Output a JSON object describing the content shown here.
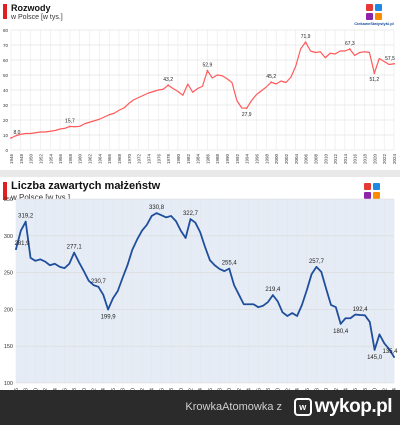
{
  "chart_data": [
    {
      "type": "line",
      "title": "Rozwody",
      "subtitle": "w Polsce [w tys.]",
      "x": [
        1946,
        1947,
        1948,
        1949,
        1950,
        1951,
        1952,
        1953,
        1954,
        1955,
        1956,
        1957,
        1958,
        1959,
        1960,
        1961,
        1962,
        1963,
        1964,
        1965,
        1966,
        1967,
        1968,
        1969,
        1970,
        1971,
        1972,
        1973,
        1974,
        1975,
        1976,
        1977,
        1978,
        1979,
        1980,
        1981,
        1982,
        1983,
        1984,
        1985,
        1986,
        1987,
        1988,
        1989,
        1990,
        1991,
        1992,
        1993,
        1994,
        1995,
        1996,
        1997,
        1998,
        1999,
        2000,
        2001,
        2002,
        2003,
        2004,
        2005,
        2006,
        2007,
        2008,
        2009,
        2010,
        2011,
        2012,
        2013,
        2014,
        2015,
        2016,
        2017,
        2018,
        2019,
        2020,
        2021,
        2022,
        2023,
        2024
      ],
      "values": [
        8.0,
        9.5,
        10.5,
        11.0,
        11.0,
        11.5,
        12.0,
        12.0,
        12.5,
        13.0,
        14.0,
        14.5,
        15.7,
        15.5,
        15.8,
        17.5,
        18.5,
        19.5,
        20.5,
        22.0,
        23.5,
        24.5,
        26.5,
        28.0,
        31.0,
        33.5,
        35.0,
        36.5,
        38.0,
        39.0,
        40.0,
        40.5,
        43.2,
        41.0,
        39.0,
        36.5,
        44.0,
        38.5,
        41.0,
        42.5,
        52.9,
        48.0,
        50.0,
        49.5,
        47.5,
        45.0,
        33.0,
        28.0,
        27.9,
        33.0,
        37.0,
        39.5,
        42.0,
        45.2,
        44.0,
        46.0,
        45.0,
        48.5,
        56.0,
        67.5,
        71.9,
        66.0,
        65.0,
        65.5,
        61.5,
        64.5,
        64.0,
        66.0,
        66.0,
        67.3,
        63.0,
        65.0,
        65.5,
        65.0,
        51.2,
        61.0,
        59.0,
        57.0,
        57.5
      ],
      "x_ticks": [
        "1946",
        "1948",
        "1950",
        "1952",
        "1954",
        "1956",
        "1958",
        "1960",
        "1962",
        "1964",
        "1966",
        "1968",
        "1970",
        "1972",
        "1974",
        "1976",
        "1978",
        "1980",
        "1982",
        "1984",
        "1986",
        "1988",
        "1990",
        "1992",
        "1994",
        "1996",
        "1998",
        "2000",
        "2002",
        "2004",
        "2006",
        "2008",
        "2010",
        "2012",
        "2014",
        "2016",
        "2018",
        "2020",
        "2022",
        "2024"
      ],
      "y_ticks": [
        0,
        10,
        20,
        30,
        40,
        50,
        60,
        70,
        80
      ],
      "ylim": [
        0,
        80
      ],
      "grid": true,
      "line_color": "#ff5a5a",
      "labels": [
        {
          "x": 1946,
          "value": 8.0,
          "text": "8,0"
        },
        {
          "x": 1958,
          "value": 15.7,
          "text": "15,7"
        },
        {
          "x": 1978,
          "value": 43.2,
          "text": "43,2"
        },
        {
          "x": 1986,
          "value": 52.9,
          "text": "52,9"
        },
        {
          "x": 1994,
          "value": 27.9,
          "text": "27,9"
        },
        {
          "x": 1999,
          "value": 45.2,
          "text": "45,2"
        },
        {
          "x": 2006,
          "value": 71.9,
          "text": "71,9"
        },
        {
          "x": 2015,
          "value": 67.3,
          "text": "67,3"
        },
        {
          "x": 2020,
          "value": 51.2,
          "text": "51,2"
        },
        {
          "x": 2024,
          "value": 57.5,
          "text": "57,5"
        }
      ]
    },
    {
      "type": "line",
      "title": "Liczba zawartych małżeństw",
      "subtitle": "w Polsce [w tys.]",
      "x": [
        1946,
        1947,
        1948,
        1949,
        1950,
        1951,
        1952,
        1953,
        1954,
        1955,
        1956,
        1957,
        1958,
        1959,
        1960,
        1961,
        1962,
        1963,
        1964,
        1965,
        1966,
        1967,
        1968,
        1969,
        1970,
        1971,
        1972,
        1973,
        1974,
        1975,
        1976,
        1977,
        1978,
        1979,
        1980,
        1981,
        1982,
        1983,
        1984,
        1985,
        1986,
        1987,
        1988,
        1989,
        1990,
        1991,
        1992,
        1993,
        1994,
        1995,
        1996,
        1997,
        1998,
        1999,
        2000,
        2001,
        2002,
        2003,
        2004,
        2005,
        2006,
        2007,
        2008,
        2009,
        2010,
        2011,
        2012,
        2013,
        2014,
        2015,
        2016,
        2017,
        2018,
        2019,
        2020,
        2021,
        2022,
        2023,
        2024
      ],
      "values": [
        281.9,
        307.0,
        319.2,
        270.0,
        266.0,
        268.0,
        265.0,
        260.0,
        262.0,
        258.0,
        256.0,
        262.0,
        277.1,
        264.0,
        252.0,
        239.0,
        233.0,
        230.7,
        220.0,
        199.9,
        215.0,
        225.0,
        243.0,
        260.0,
        281.0,
        295.0,
        307.0,
        315.0,
        327.0,
        330.8,
        328.0,
        325.0,
        327.0,
        320.0,
        307.0,
        297.0,
        322.7,
        318.0,
        305.0,
        285.0,
        267.0,
        260.0,
        255.0,
        252.0,
        255.4,
        233.0,
        220.0,
        207.0,
        207.0,
        207.0,
        203.0,
        205.0,
        210.0,
        219.4,
        211.0,
        196.0,
        191.0,
        195.0,
        191.0,
        206.0,
        226.0,
        248.0,
        257.7,
        251.0,
        228.0,
        206.0,
        203.0,
        180.4,
        188.0,
        188.0,
        193.0,
        192.4,
        192.0,
        183.0,
        145.0,
        166.0,
        154.0,
        146.0,
        135.4
      ],
      "x_ticks": [
        "1946",
        "1948",
        "1950",
        "1952",
        "1954",
        "1956",
        "1958",
        "1960",
        "1962",
        "1964",
        "1966",
        "1968",
        "1970",
        "1972",
        "1974",
        "1976",
        "1978",
        "1980",
        "1982",
        "1984",
        "1986",
        "1988",
        "1990",
        "1992",
        "1994",
        "1996",
        "1998",
        "2000",
        "2002",
        "2004",
        "2006",
        "2008",
        "2010",
        "2012",
        "2014",
        "2016",
        "2018",
        "2020",
        "2022",
        "2024"
      ],
      "y_ticks": [
        100,
        150,
        200,
        250,
        300,
        350
      ],
      "ylim": [
        100,
        350
      ],
      "grid": true,
      "line_color": "#1f4f9c",
      "labels": [
        {
          "x": 1946,
          "value": 281.9,
          "text": "281,9"
        },
        {
          "x": 1948,
          "value": 319.2,
          "text": "319,2"
        },
        {
          "x": 1958,
          "value": 277.1,
          "text": "277,1"
        },
        {
          "x": 1963,
          "value": 230.7,
          "text": "230,7"
        },
        {
          "x": 1965,
          "value": 199.9,
          "text": "199,9"
        },
        {
          "x": 1975,
          "value": 330.8,
          "text": "330,8"
        },
        {
          "x": 1982,
          "value": 322.7,
          "text": "322,7"
        },
        {
          "x": 1990,
          "value": 255.4,
          "text": "255,4"
        },
        {
          "x": 1999,
          "value": 219.4,
          "text": "219,4"
        },
        {
          "x": 2008,
          "value": 257.7,
          "text": "257,7"
        },
        {
          "x": 2013,
          "value": 180.4,
          "text": "180,4"
        },
        {
          "x": 2017,
          "value": 192.4,
          "text": "192,4"
        },
        {
          "x": 2020,
          "value": 145.0,
          "text": "145,0"
        },
        {
          "x": 2024,
          "value": 135.4,
          "text": "135,4"
        }
      ]
    }
  ],
  "branding": {
    "site_name": "CiekaweStatystyki.pl",
    "logo_colors": [
      "#e53935",
      "#1e88e5",
      "#8e24aa",
      "#fb8c00"
    ]
  },
  "accent_color": "#e02020",
  "footer": {
    "author_text": "KrowkaAtomowka  z",
    "site_logo_text": "wykop.pl"
  }
}
